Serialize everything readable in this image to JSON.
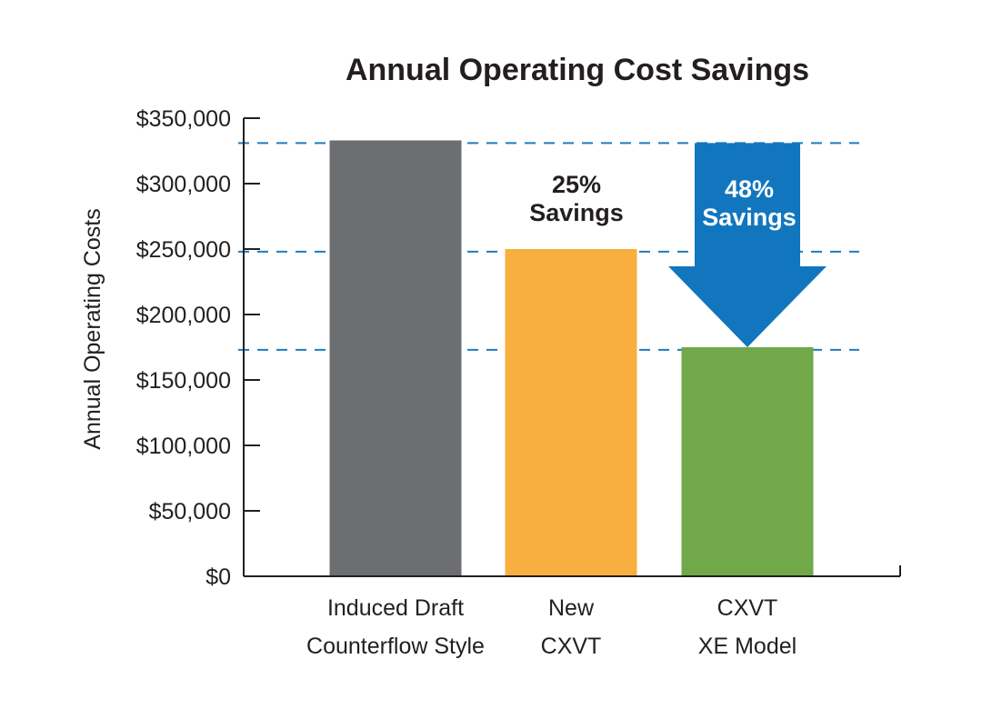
{
  "chart_data": {
    "type": "bar",
    "title": "Annual Operating Cost Savings",
    "ylabel": "Annual Operating Costs",
    "xlabel": "",
    "ylim": [
      0,
      350000
    ],
    "y_ticks": [
      {
        "value": 0,
        "label": "$0"
      },
      {
        "value": 50000,
        "label": "$50,000"
      },
      {
        "value": 100000,
        "label": "$100,000"
      },
      {
        "value": 150000,
        "label": "$150,000"
      },
      {
        "value": 200000,
        "label": "$200,000"
      },
      {
        "value": 250000,
        "label": "$250,000"
      },
      {
        "value": 300000,
        "label": "$300,000"
      },
      {
        "value": 350000,
        "label": "$350,000"
      }
    ],
    "categories": [
      [
        "Induced Draft",
        "Counterflow Style"
      ],
      [
        "New",
        "CXVT"
      ],
      [
        "CXVT",
        "XE Model"
      ]
    ],
    "values": [
      333000,
      250000,
      175000
    ],
    "colors": [
      "#6d6e71",
      "#f9ae40",
      "#70a84a"
    ],
    "reference_lines": [
      331000,
      248000,
      173000
    ],
    "reference_line_color": "#1f7bbf",
    "annotations": [
      {
        "lines": [
          "25%",
          "Savings"
        ],
        "category_index": 1
      },
      {
        "lines": [
          "48%",
          "Savings"
        ],
        "category_index": 2,
        "arrow_color": "#1176bd"
      }
    ],
    "grid": false,
    "legend": "none"
  }
}
